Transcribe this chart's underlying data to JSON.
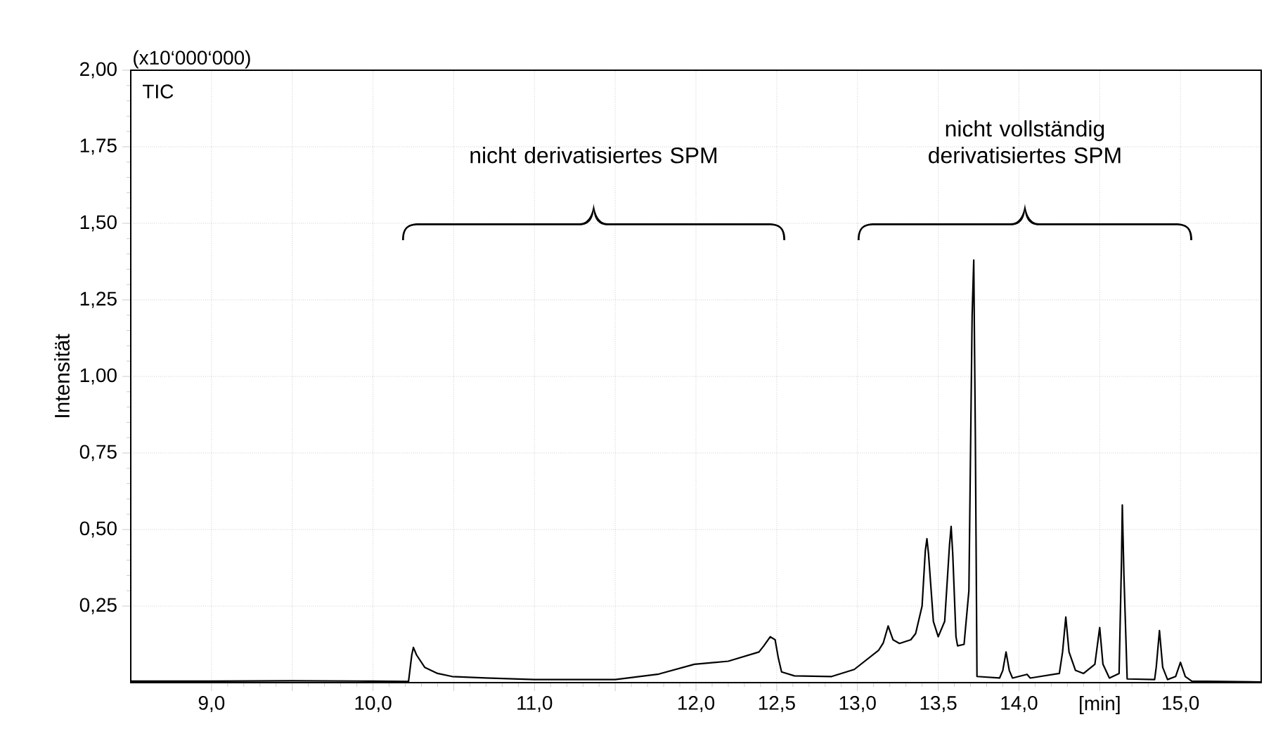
{
  "chart_data": {
    "type": "line",
    "ylabel": "Intensität",
    "annotations": [
      "(x10‘000‘000)",
      "TIC",
      "nicht derivatisiertes SPM",
      "nicht vollständig derivatisiertes SPM"
    ],
    "xlim": [
      8.5,
      15.5
    ],
    "ylim": [
      0,
      2.0
    ],
    "xticks": [
      {
        "value": 9.0,
        "label": "9,0"
      },
      {
        "value": 9.5,
        "label": null
      },
      {
        "value": 10.0,
        "label": "10,0"
      },
      {
        "value": 10.5,
        "label": null
      },
      {
        "value": 11.0,
        "label": "11,0"
      },
      {
        "value": 11.5,
        "label": null
      },
      {
        "value": 12.0,
        "label": "12,0"
      },
      {
        "value": 12.5,
        "label": "12,5"
      },
      {
        "value": 13.0,
        "label": "13,0"
      },
      {
        "value": 13.5,
        "label": "13,5"
      },
      {
        "value": 14.0,
        "label": "14,0"
      },
      {
        "value": 14.5,
        "label": "[min]"
      },
      {
        "value": 15.0,
        "label": "15,0"
      }
    ],
    "yticks": [
      {
        "value": 0.25,
        "label": "0,25"
      },
      {
        "value": 0.5,
        "label": "0,50"
      },
      {
        "value": 0.75,
        "label": "0,75"
      },
      {
        "value": 1.0,
        "label": "1,00"
      },
      {
        "value": 1.25,
        "label": "1,25"
      },
      {
        "value": 1.5,
        "label": "1,50"
      },
      {
        "value": 1.75,
        "label": "1,75"
      },
      {
        "value": 2.0,
        "label": "2,00"
      }
    ],
    "grid": true,
    "x": [
      8.5,
      9.0,
      9.5,
      10.0,
      10.22,
      10.24,
      10.25,
      10.27,
      10.32,
      10.4,
      10.49,
      10.7,
      11.0,
      11.5,
      11.77,
      11.99,
      12.2,
      12.39,
      12.42,
      12.46,
      12.49,
      12.51,
      12.53,
      12.61,
      12.84,
      12.98,
      13.13,
      13.16,
      13.19,
      13.22,
      13.26,
      13.33,
      13.36,
      13.4,
      13.42,
      13.43,
      13.44,
      13.47,
      13.5,
      13.54,
      13.57,
      13.58,
      13.59,
      13.61,
      13.62,
      13.66,
      13.69,
      13.71,
      13.72,
      13.73,
      13.74,
      13.88,
      13.9,
      13.92,
      13.94,
      13.96,
      14.05,
      14.07,
      14.25,
      14.27,
      14.29,
      14.31,
      14.35,
      14.4,
      14.47,
      14.5,
      14.52,
      14.56,
      14.62,
      14.635,
      14.64,
      14.65,
      14.67,
      14.84,
      14.85,
      14.87,
      14.89,
      14.92,
      14.97,
      15.0,
      15.03,
      15.07,
      15.5
    ],
    "series": [
      {
        "color": "#000000",
        "values": [
          0.005,
          0.005,
          0.006,
          0.005,
          0.004,
          0.09,
          0.115,
          0.09,
          0.05,
          0.03,
          0.02,
          0.015,
          0.01,
          0.01,
          0.028,
          0.06,
          0.07,
          0.1,
          0.12,
          0.15,
          0.14,
          0.08,
          0.035,
          0.022,
          0.02,
          0.043,
          0.105,
          0.13,
          0.185,
          0.14,
          0.128,
          0.14,
          0.16,
          0.25,
          0.43,
          0.47,
          0.42,
          0.2,
          0.15,
          0.2,
          0.45,
          0.51,
          0.42,
          0.15,
          0.12,
          0.125,
          0.3,
          1.2,
          1.38,
          0.8,
          0.02,
          0.015,
          0.04,
          0.1,
          0.04,
          0.015,
          0.027,
          0.015,
          0.03,
          0.1,
          0.214,
          0.1,
          0.04,
          0.03,
          0.06,
          0.18,
          0.06,
          0.015,
          0.03,
          0.4,
          0.58,
          0.35,
          0.012,
          0.01,
          0.05,
          0.17,
          0.05,
          0.01,
          0.02,
          0.066,
          0.02,
          0.005,
          0.002
        ]
      }
    ]
  }
}
